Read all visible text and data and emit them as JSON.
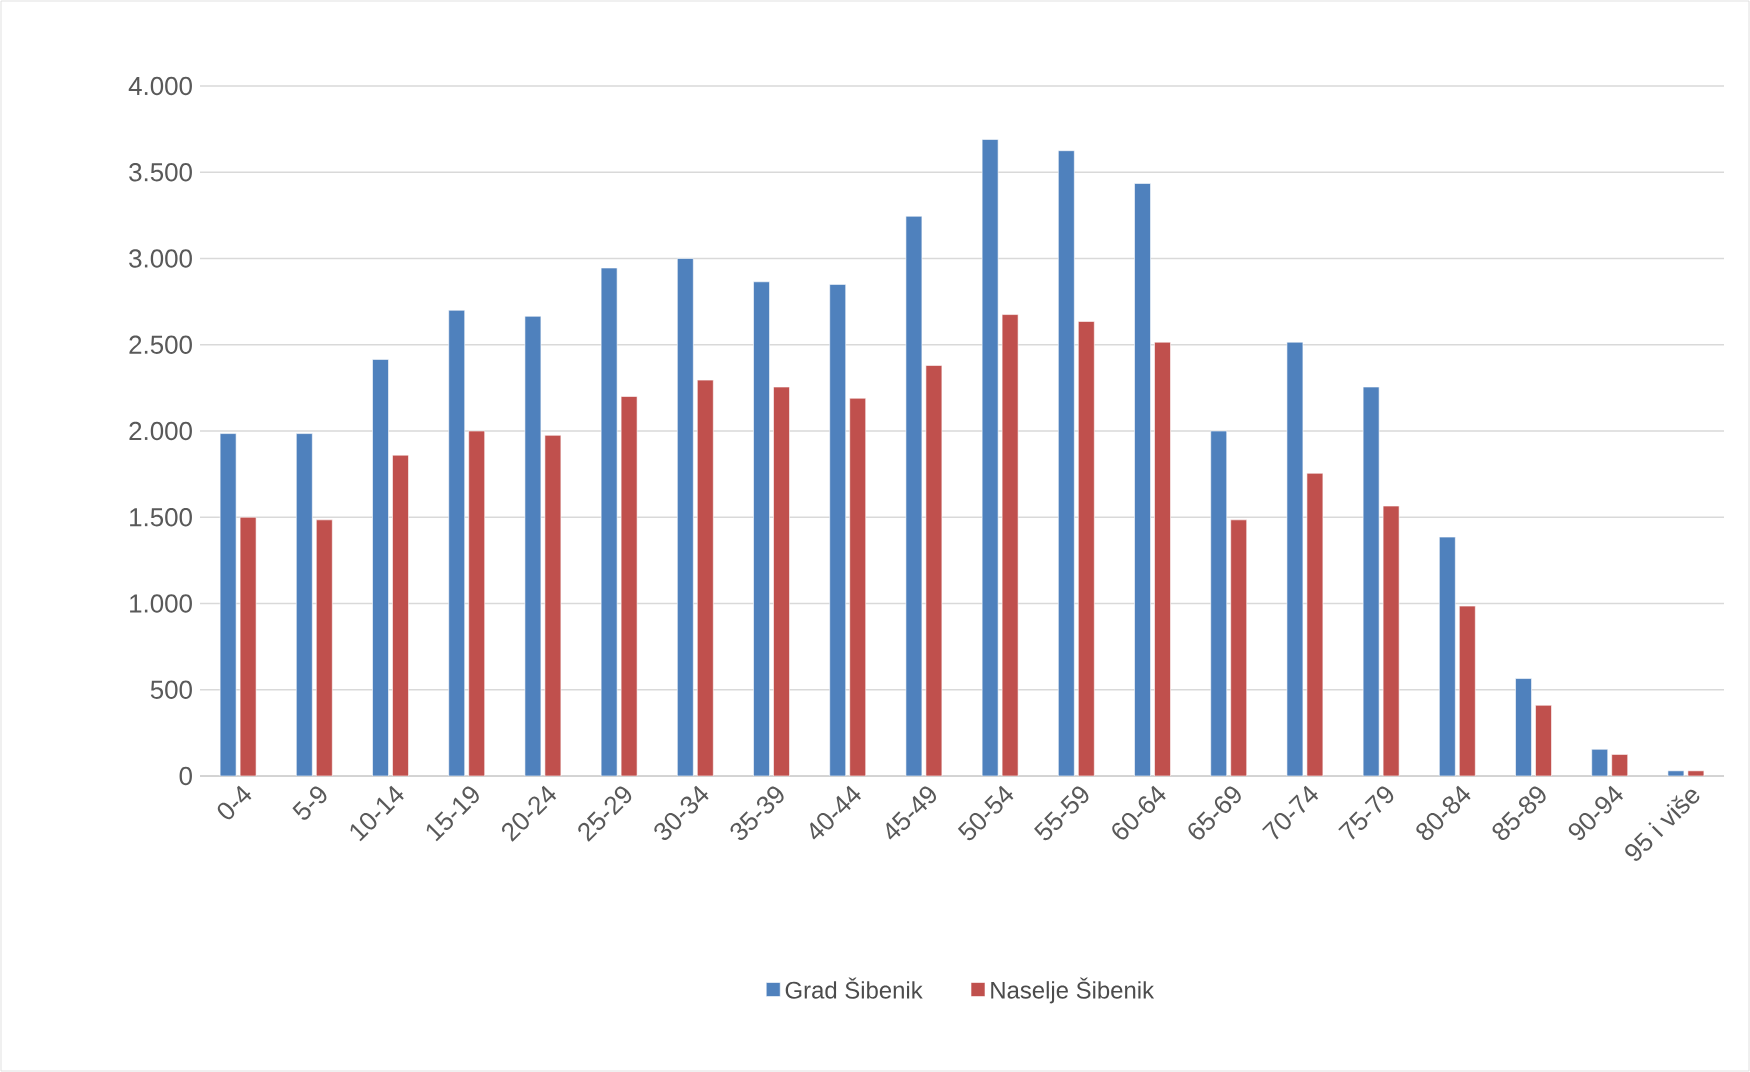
{
  "chart_data": {
    "type": "bar",
    "categories": [
      "0-4",
      "5-9",
      "10-14",
      "15-19",
      "20-24",
      "25-29",
      "30-34",
      "35-39",
      "40-44",
      "45-49",
      "50-54",
      "55-59",
      "60-64",
      "65-69",
      "70-74",
      "75-79",
      "80-84",
      "85-89",
      "90-94",
      "95 i više"
    ],
    "series": [
      {
        "name": "Grad Šibenik",
        "color": "#4f81bd",
        "values": [
          1985,
          1985,
          2415,
          2700,
          2665,
          2945,
          3000,
          2865,
          2850,
          3245,
          3690,
          3625,
          3435,
          2000,
          2515,
          2255,
          1385,
          565,
          155,
          30
        ]
      },
      {
        "name": "Naselje Šibenik",
        "color": "#c0504d",
        "values": [
          1500,
          1485,
          1860,
          2000,
          1975,
          2200,
          2295,
          2255,
          2190,
          2380,
          2675,
          2635,
          2515,
          1485,
          1755,
          1565,
          985,
          410,
          125,
          30
        ]
      }
    ],
    "ylim": [
      0,
      4000
    ],
    "yticks": [
      {
        "value": 0,
        "label": "0"
      },
      {
        "value": 500,
        "label": "500"
      },
      {
        "value": 1000,
        "label": "1.000"
      },
      {
        "value": 1500,
        "label": "1.500"
      },
      {
        "value": 2000,
        "label": "2.000"
      },
      {
        "value": 2500,
        "label": "2.500"
      },
      {
        "value": 3000,
        "label": "3.000"
      },
      {
        "value": 3500,
        "label": "3.500"
      },
      {
        "value": 4000,
        "label": "4.000"
      }
    ],
    "grid": "y",
    "legend": "bottom"
  }
}
